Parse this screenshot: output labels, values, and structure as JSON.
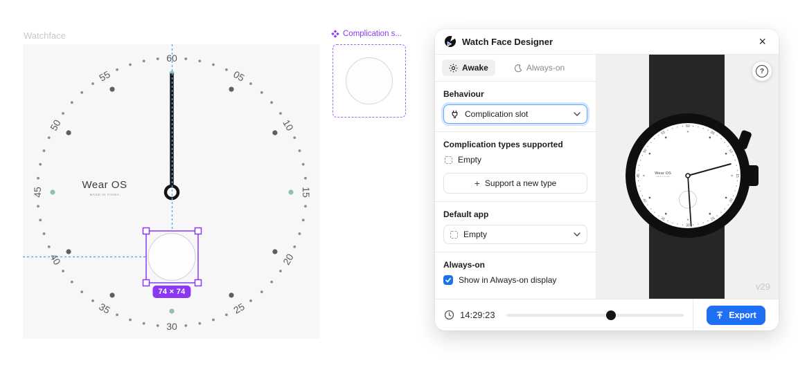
{
  "canvas": {
    "label": "Watchface",
    "selection": {
      "badge": "74 × 74",
      "width": 74,
      "height": 74
    },
    "colors": {
      "canvas_bg": "#f7f7f7",
      "guide": "#58aaff",
      "selection": "#8a38f4",
      "badge_bg": "#8a38f4"
    }
  },
  "dial": {
    "minute_labels": [
      "05",
      "10",
      "15",
      "20",
      "25",
      "30",
      "35",
      "40",
      "45",
      "50",
      "55",
      "60"
    ],
    "accent_minutes": [
      15,
      30,
      45,
      60
    ],
    "brand": "Wear OS",
    "brand_sub": "MADE IN FIGMA",
    "colors": {
      "accent": "#90c0a5",
      "minute_dot": "#8d8d8d",
      "marker": "#5f5f5f",
      "number": "#5a5a5a",
      "hand": "#141414",
      "complication_stroke": "#cfcfcf"
    }
  },
  "component_card": {
    "label": "Complication s..."
  },
  "panel": {
    "title": "Watch Face Designer",
    "tabs": {
      "awake": "Awake",
      "always_on": "Always-on",
      "active": "Awake"
    },
    "behaviour": {
      "heading": "Behaviour",
      "value": "Complication slot"
    },
    "complication_types": {
      "heading": "Complication types supported",
      "empty_label": "Empty",
      "add_plus": "+",
      "add_label": "Support a new type"
    },
    "default_app": {
      "heading": "Default app",
      "value": "Empty"
    },
    "always_on_section": {
      "heading": "Always-on",
      "checkbox_label": "Show in Always-on display",
      "checked": true
    },
    "preview": {
      "version": "v29"
    },
    "footer": {
      "time": "14:29:23",
      "slider_percent": 59,
      "export_label": "Export"
    },
    "help_glyph": "?",
    "colors": {
      "export_blue": "#1f6ff5",
      "checkbox_blue": "#1a73e8",
      "focus_ring": "#62a6ff"
    }
  }
}
